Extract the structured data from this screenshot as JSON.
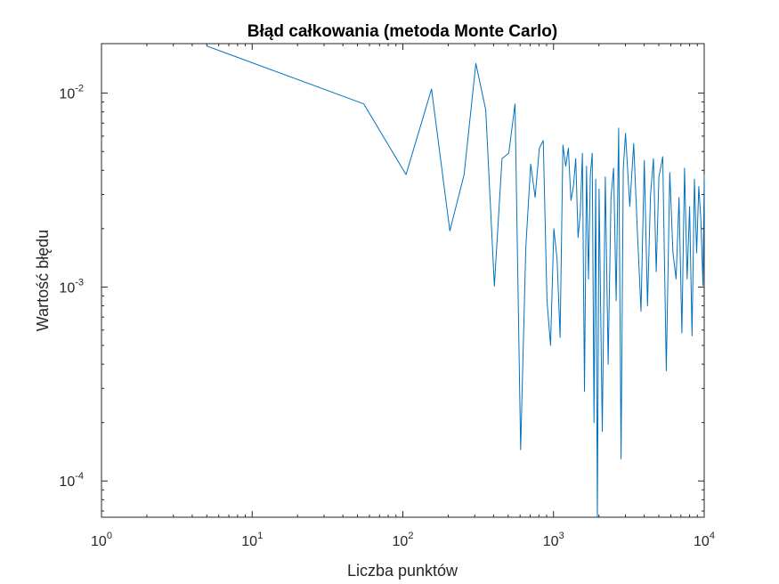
{
  "chart_data": {
    "type": "line",
    "title": "Błąd całkowania (metoda Monte Carlo)",
    "xlabel": "Liczba punktów",
    "ylabel": "Wartość błędu",
    "x_scale": "log",
    "y_scale": "log",
    "xlim": [
      1,
      10000
    ],
    "ylim": [
      6.5e-05,
      0.018
    ],
    "grid": false,
    "line_color": "#0072BD",
    "x_ticks": [
      {
        "base": "10",
        "exp": "0",
        "value": 1
      },
      {
        "base": "10",
        "exp": "1",
        "value": 10
      },
      {
        "base": "10",
        "exp": "2",
        "value": 100
      },
      {
        "base": "10",
        "exp": "3",
        "value": 1000
      },
      {
        "base": "10",
        "exp": "4",
        "value": 10000
      }
    ],
    "y_ticks": [
      {
        "base": "10",
        "exp": "-4",
        "value": 0.0001
      },
      {
        "base": "10",
        "exp": "-3",
        "value": 0.001
      },
      {
        "base": "10",
        "exp": "-2",
        "value": 0.01
      }
    ],
    "series": [
      {
        "x": [
          5,
          55,
          105,
          155,
          205,
          255,
          305,
          355,
          405,
          455,
          505,
          555,
          605,
          655,
          705,
          755,
          805,
          855,
          905,
          955,
          1005,
          1055,
          1105,
          1155,
          1205,
          1255,
          1305,
          1355,
          1405,
          1455,
          1505,
          1555,
          1605,
          1655,
          1705,
          1755,
          1805,
          1855,
          1905,
          1955,
          2005,
          2105,
          2205,
          2305,
          2405,
          2505,
          2605,
          2705,
          2805,
          2905,
          3005,
          3205,
          3405,
          3605,
          3805,
          4005,
          4205,
          4405,
          4605,
          4805,
          5005,
          5305,
          5605,
          5905,
          6205,
          6505,
          6805,
          7105,
          7405,
          7705,
          8005,
          8305,
          8605,
          8905,
          9205,
          9505,
          9805,
          10000
        ],
        "y": [
          0.0175,
          0.0088,
          0.0038,
          0.0105,
          0.00195,
          0.0038,
          0.0142,
          0.0082,
          0.00101,
          0.0046,
          0.0049,
          0.0088,
          0.000145,
          0.0016,
          0.0043,
          0.0029,
          0.0052,
          0.0057,
          0.00085,
          0.0005,
          0.002,
          0.0014,
          0.00055,
          0.0054,
          0.0042,
          0.0052,
          0.0028,
          0.0033,
          0.0046,
          0.0018,
          0.0024,
          0.0049,
          0.00029,
          0.0042,
          0.0011,
          0.0038,
          0.0049,
          0.0002,
          0.0036,
          6.5e-05,
          0.0032,
          0.00018,
          0.0037,
          0.0004,
          0.0029,
          0.0041,
          0.00085,
          0.0066,
          0.00013,
          0.0041,
          0.0062,
          0.0026,
          0.0055,
          0.0019,
          0.00075,
          0.0045,
          0.0008,
          0.003,
          0.0046,
          0.0012,
          0.0037,
          0.0047,
          0.00037,
          0.0039,
          0.0015,
          0.0011,
          0.0029,
          0.00058,
          0.0041,
          0.0011,
          0.0026,
          0.00056,
          0.0036,
          0.0015,
          0.0033,
          0.0022,
          0.00102,
          0.0038
        ]
      }
    ]
  }
}
